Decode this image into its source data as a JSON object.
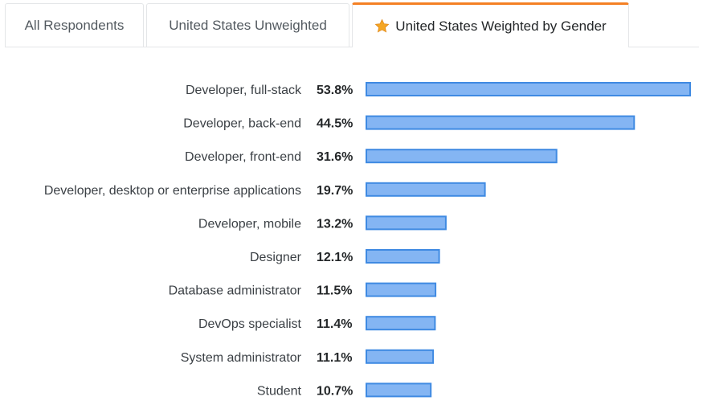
{
  "tabs": [
    {
      "label": "All Respondents",
      "active": false
    },
    {
      "label": "United States Unweighted",
      "active": false
    },
    {
      "label": "United States Weighted by Gender",
      "active": true,
      "icon": "star-icon"
    }
  ],
  "colors": {
    "accent": "#f48024",
    "bar_fill": "#84b5f3",
    "bar_stroke": "#3f8ae2",
    "star": "#f5a623"
  },
  "chart_data": {
    "type": "bar",
    "orientation": "horizontal",
    "categories": [
      "Developer, full-stack",
      "Developer, back-end",
      "Developer, front-end",
      "Developer, desktop or enterprise applications",
      "Developer, mobile",
      "Designer",
      "Database administrator",
      "DevOps specialist",
      "System administrator",
      "Student"
    ],
    "values": [
      53.8,
      44.5,
      31.6,
      19.7,
      13.2,
      12.1,
      11.5,
      11.4,
      11.1,
      10.7
    ],
    "value_labels": [
      "53.8%",
      "44.5%",
      "31.6%",
      "19.7%",
      "13.2%",
      "12.1%",
      "11.5%",
      "11.4%",
      "11.1%",
      "10.7%"
    ],
    "unit": "%",
    "xlim": [
      0,
      53.8
    ],
    "grid": false,
    "legend": "none"
  }
}
